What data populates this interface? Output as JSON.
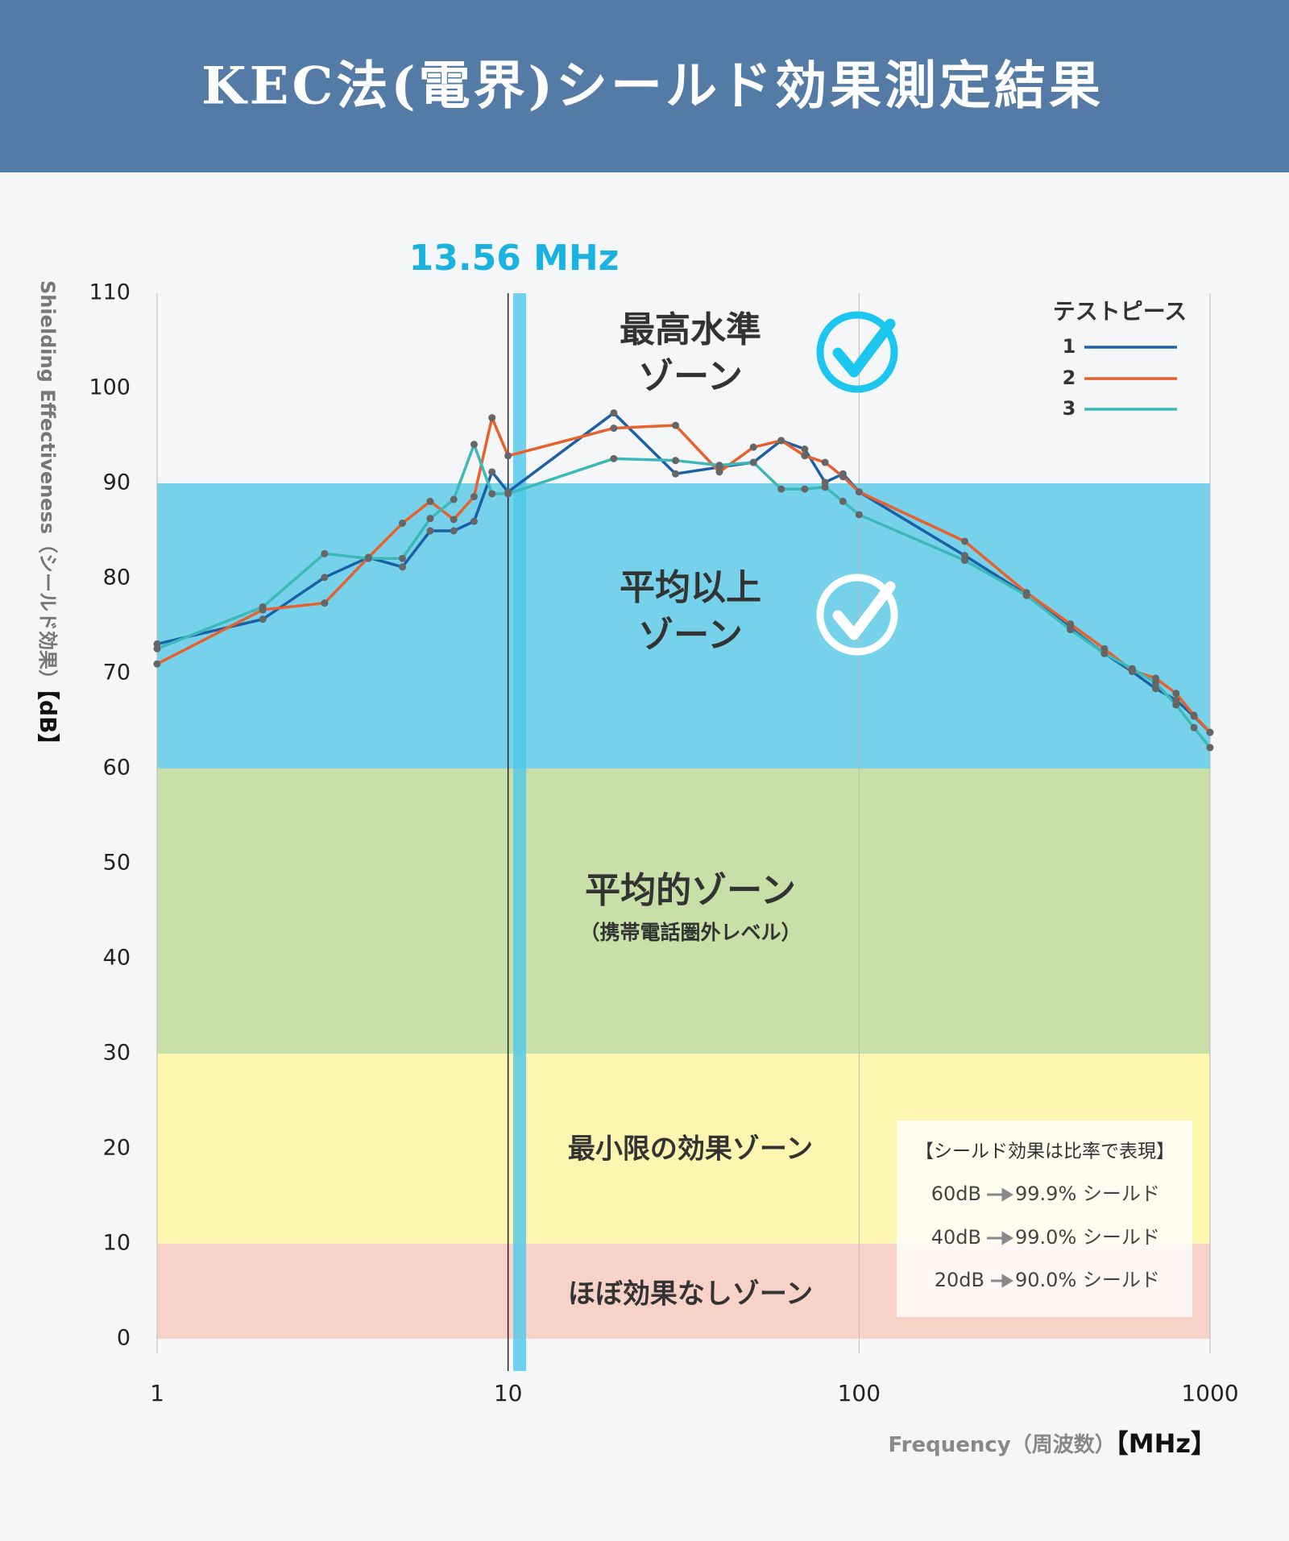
{
  "header": {
    "title": "KEC法(電界)シールド効果測定結果"
  },
  "chart_data": {
    "type": "line",
    "x": [
      1,
      2,
      3,
      4,
      5,
      6,
      7,
      8,
      9,
      10,
      20,
      30,
      40,
      50,
      60,
      70,
      80,
      90,
      100,
      200,
      300,
      400,
      500,
      600,
      700,
      800,
      900,
      1000
    ],
    "series": [
      {
        "name": "1",
        "color": "#1a5fa8",
        "values": [
          73.1,
          75.7,
          80.1,
          82.2,
          81.2,
          85.0,
          85.0,
          86.0,
          91.2,
          89.1,
          97.4,
          91.0,
          91.7,
          92.2,
          94.5,
          93.6,
          90.1,
          91.0,
          89.1,
          82.4,
          78.3,
          74.8,
          72.1,
          70.2,
          68.4,
          67.2,
          65.5,
          63.8
        ]
      },
      {
        "name": "2",
        "color": "#e8602c",
        "values": [
          71.0,
          76.7,
          77.4,
          82.2,
          85.8,
          88.1,
          86.2,
          88.6,
          96.9,
          92.9,
          95.8,
          96.1,
          91.2,
          93.8,
          94.5,
          92.9,
          92.2,
          90.7,
          89.1,
          83.9,
          78.5,
          75.2,
          72.6,
          70.3,
          69.5,
          67.9,
          65.6,
          63.8
        ]
      },
      {
        "name": "3",
        "color": "#3db8b8",
        "values": [
          72.6,
          77.0,
          82.6,
          82.1,
          82.1,
          86.3,
          88.3,
          94.1,
          88.9,
          88.9,
          92.6,
          92.4,
          91.9,
          92.2,
          89.4,
          89.4,
          89.6,
          88.1,
          86.7,
          81.9,
          78.2,
          74.6,
          72.1,
          70.5,
          69.0,
          66.7,
          64.3,
          62.2
        ]
      }
    ],
    "legend_title": "テストピース",
    "xlim": [
      1,
      1000
    ],
    "xticks": [
      1,
      10,
      100,
      1000
    ],
    "log_x": true,
    "ylim": [
      0,
      110
    ],
    "yticks": [
      0,
      10,
      20,
      30,
      40,
      50,
      60,
      70,
      80,
      90,
      100,
      110
    ],
    "xlabel": [
      "Frequency（周波数）",
      "【MHz】"
    ],
    "ylabel": [
      "Shielding Effectiveness（シールド効果）",
      "【dB】"
    ],
    "highlight_label": "13.56 MHz",
    "zones": [
      {
        "from": 90,
        "to": 110,
        "color": "none",
        "label": [
          "最高水準",
          "ゾーン"
        ]
      },
      {
        "from": 60,
        "to": 90,
        "color": "#76d2ea",
        "label": [
          "平均以上",
          "ゾーン"
        ]
      },
      {
        "from": 30,
        "to": 60,
        "color": "#c8e0a8",
        "label": [
          "平均的ゾーン"
        ],
        "sublabel": "（携帯電話圏外レベル）"
      },
      {
        "from": 10,
        "to": 30,
        "color": "#fdf6b0",
        "label": [
          "最小限の効果ゾーン"
        ]
      },
      {
        "from": 0,
        "to": 10,
        "color": "#f7d2c8",
        "label": [
          "ほぼ効果なしゾーン"
        ]
      }
    ],
    "note": {
      "title": "【シールド効果は比率で表現】",
      "rows": [
        [
          "60dB",
          "99.9% シールド"
        ],
        [
          "40dB",
          "99.0% シールド"
        ],
        [
          "20dB",
          "90.0% シールド"
        ]
      ]
    }
  }
}
